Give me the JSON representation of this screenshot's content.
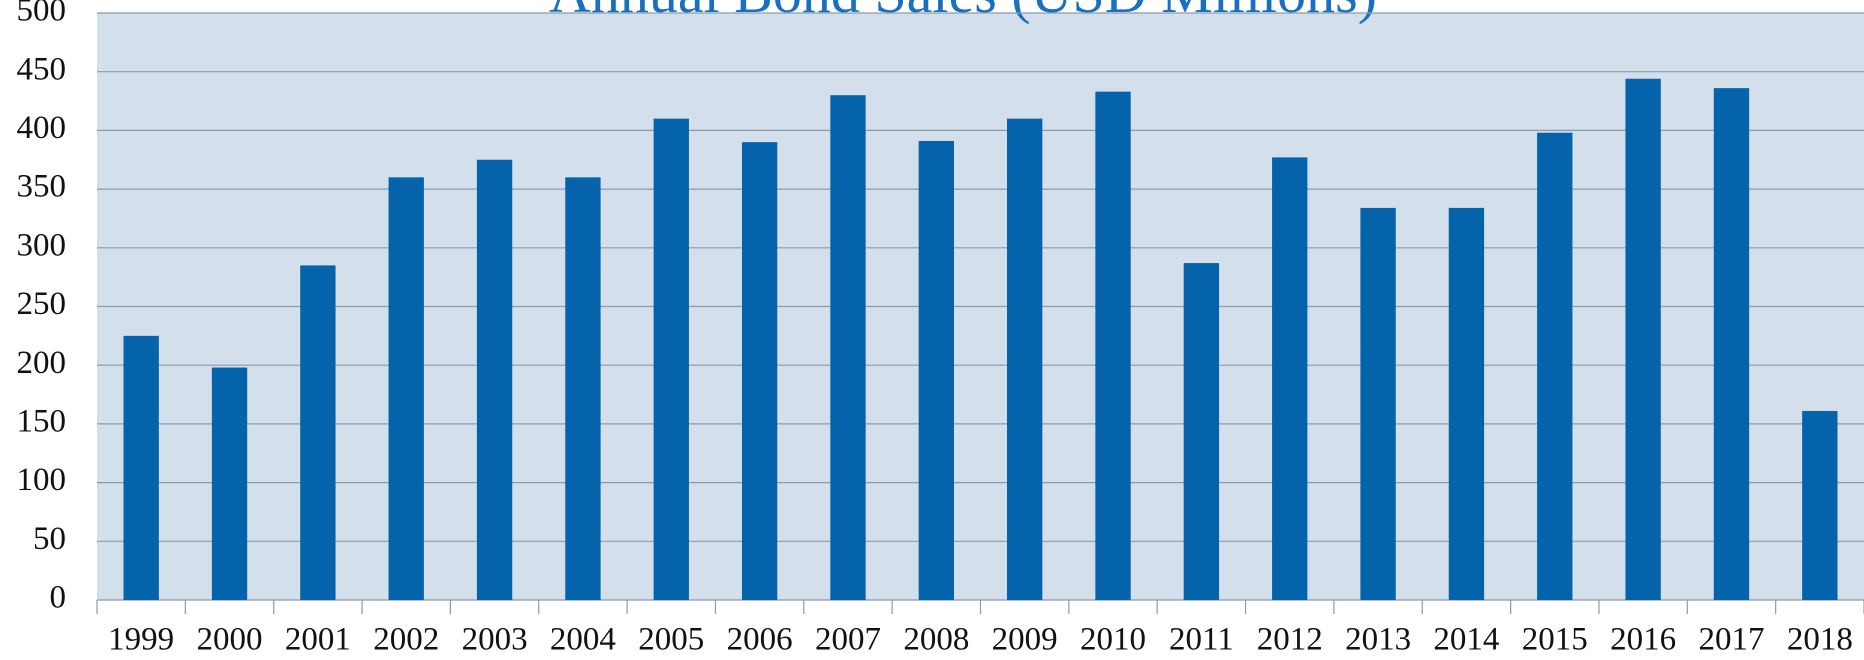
{
  "chart_data": {
    "type": "bar",
    "title": "Annual Bond Sales (USD Millions)",
    "categories": [
      "1999",
      "2000",
      "2001",
      "2002",
      "2003",
      "2004",
      "2005",
      "2006",
      "2007",
      "2008",
      "2009",
      "2010",
      "2011",
      "2012",
      "2013",
      "2014",
      "2015",
      "2016",
      "2017",
      "2018"
    ],
    "values": [
      225,
      198,
      285,
      360,
      375,
      360,
      410,
      390,
      430,
      391,
      410,
      433,
      287,
      377,
      334,
      334,
      398,
      444,
      436,
      161
    ],
    "color": "#0563ab",
    "ylim": [
      0,
      500
    ],
    "yticks": [
      0,
      50,
      100,
      150,
      200,
      250,
      300,
      350,
      400,
      450,
      500
    ],
    "grid": true
  }
}
